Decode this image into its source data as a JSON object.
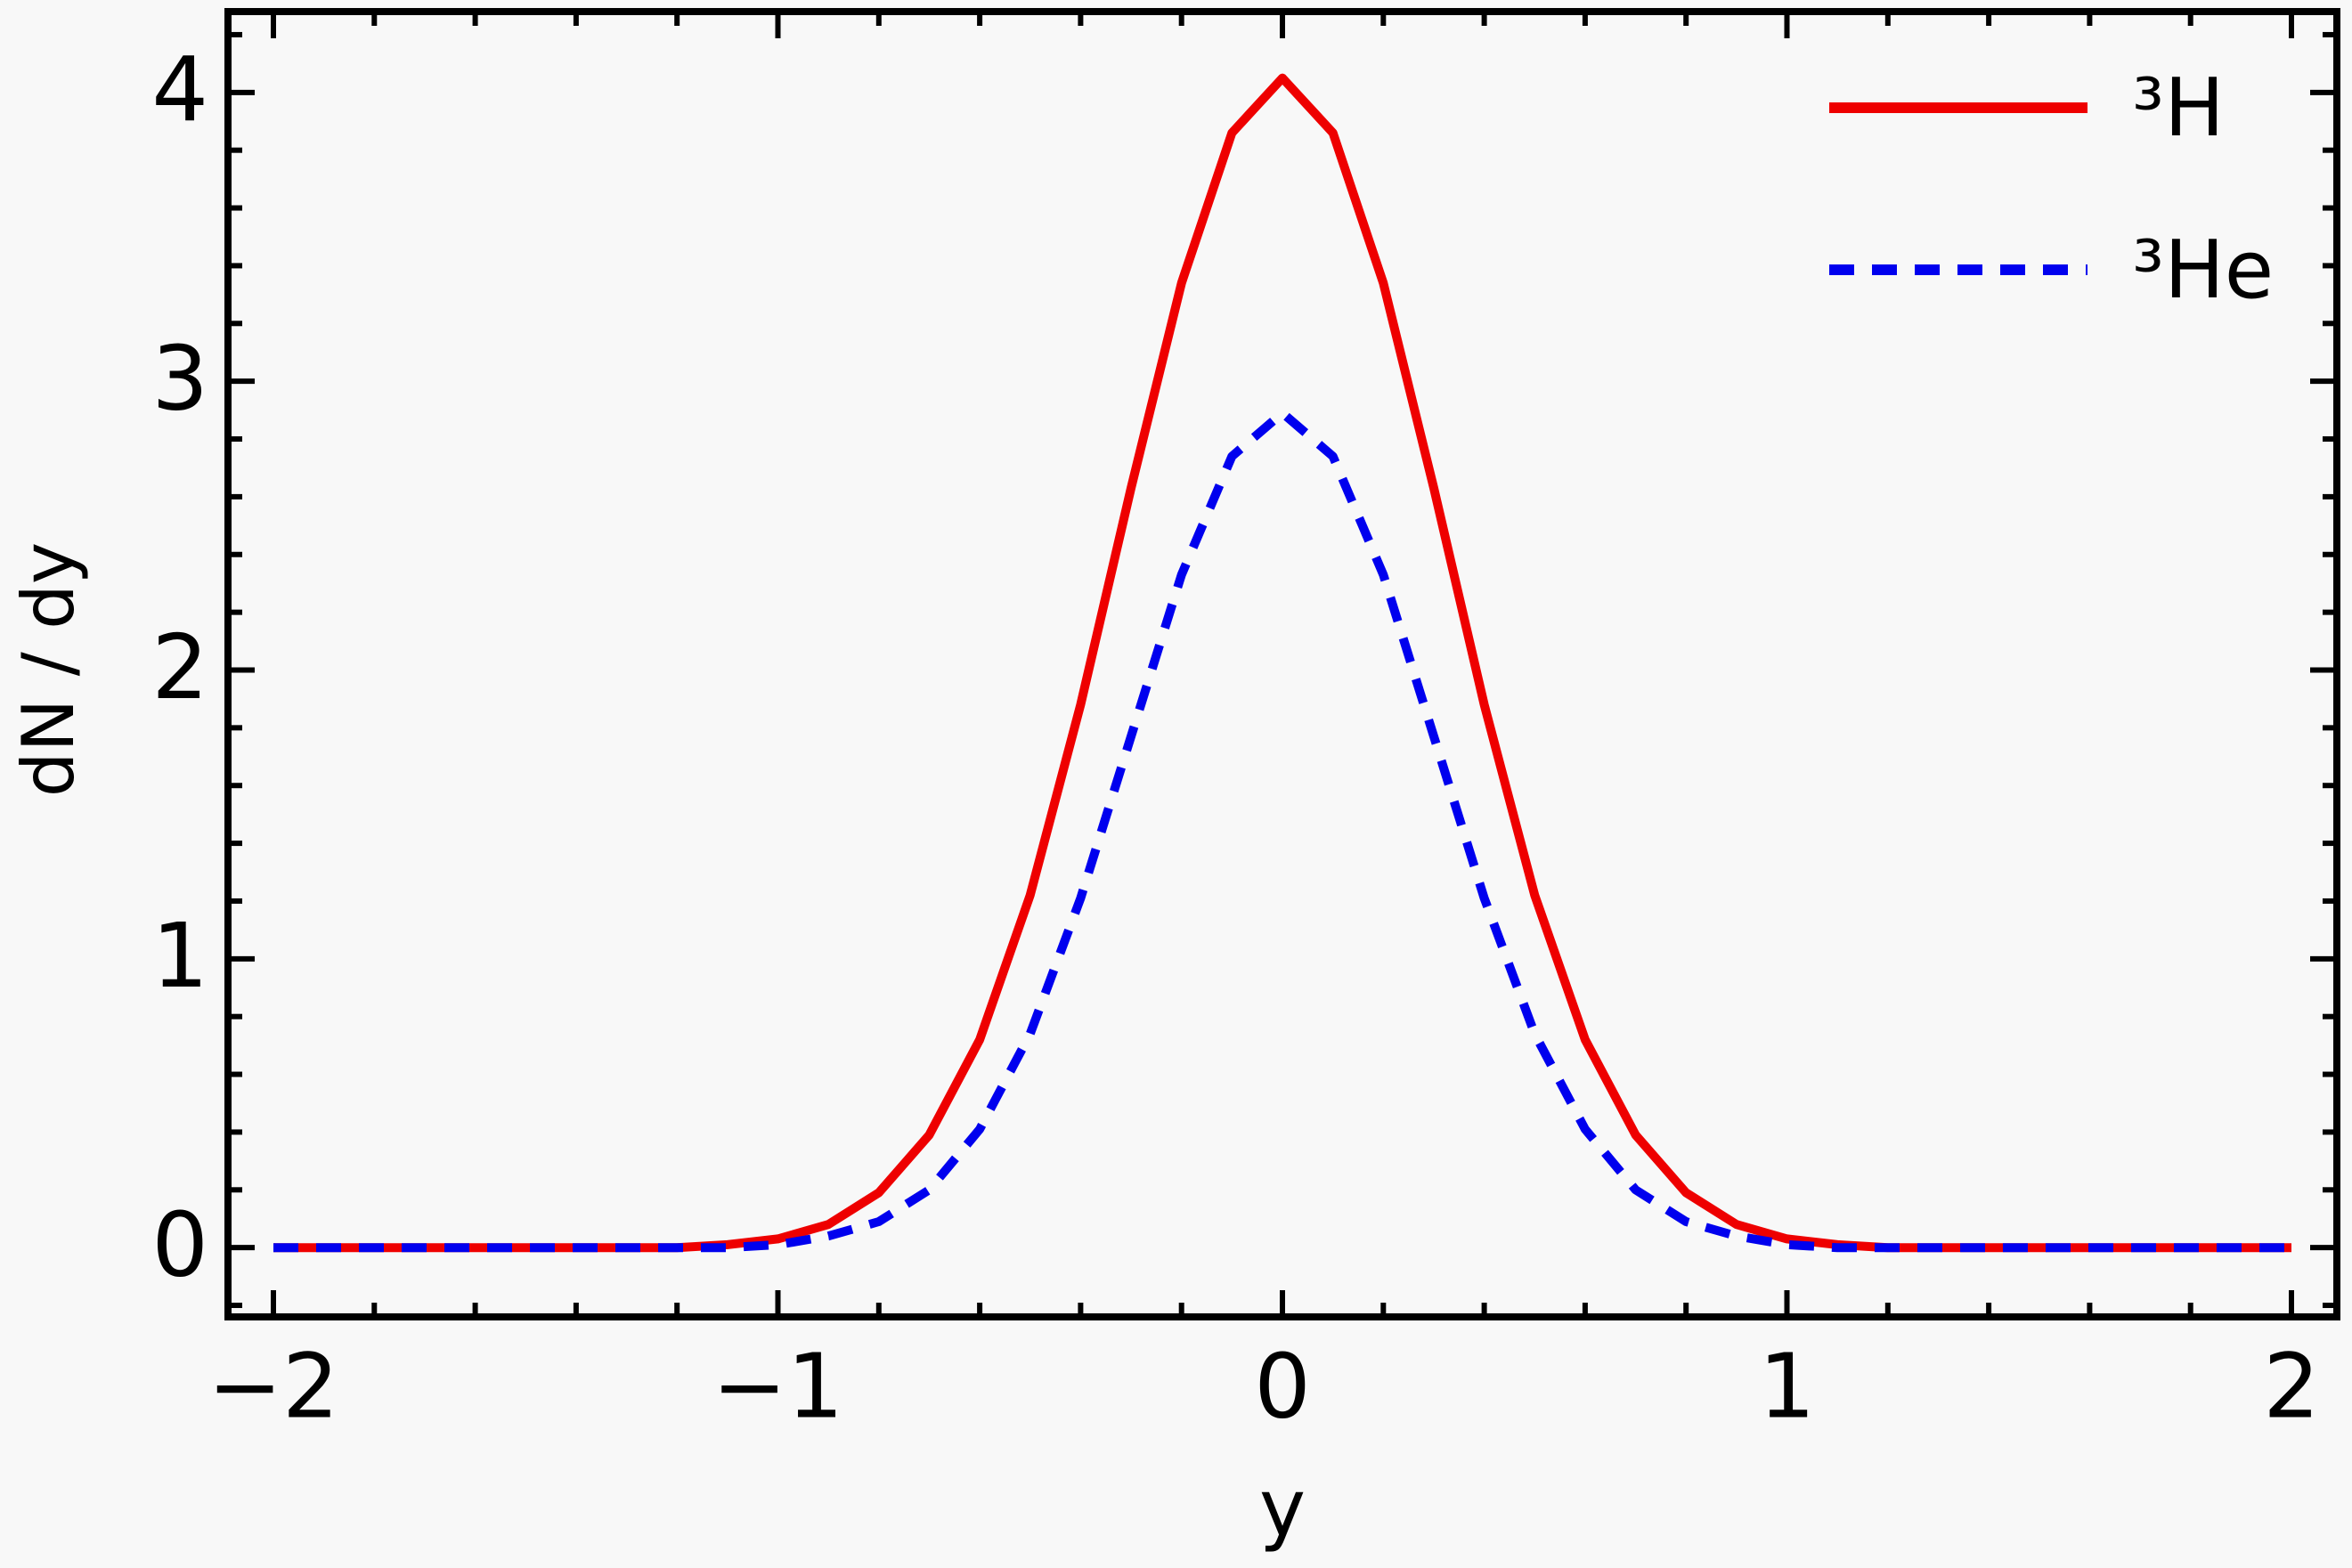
{
  "chart_data": {
    "type": "line",
    "x_label": "y",
    "y_label": "dN / dy",
    "x": [
      -2,
      -1.9,
      -1.8,
      -1.7,
      -1.6,
      -1.5,
      -1.4,
      -1.3,
      -1.2,
      -1.1,
      -1,
      -0.9,
      -0.8,
      -0.7,
      -0.6,
      -0.5,
      -0.4,
      -0.3,
      -0.2,
      -0.1,
      0,
      0.1,
      0.2,
      0.3,
      0.4,
      0.5,
      0.6,
      0.7,
      0.8,
      0.9,
      1,
      1.1,
      1.2,
      1.3,
      1.4,
      1.5,
      1.6,
      1.7,
      1.8,
      1.9,
      2
    ],
    "series": [
      {
        "name": "³H",
        "color": "#ee0000",
        "style": "solid",
        "values": [
          0,
          0,
          0,
          0,
          0,
          0,
          0,
          0,
          0,
          0.01,
          0.03,
          0.08,
          0.19,
          0.39,
          0.72,
          1.22,
          1.88,
          2.63,
          3.34,
          3.86,
          4.05,
          3.86,
          3.34,
          2.63,
          1.88,
          1.22,
          0.72,
          0.39,
          0.19,
          0.08,
          0.03,
          0.01,
          0,
          0,
          0,
          0,
          0,
          0,
          0,
          0,
          0
        ]
      },
      {
        "name": "³He",
        "color": "#0000ee",
        "style": "dashed",
        "values": [
          0,
          0,
          0,
          0,
          0,
          0,
          0,
          0,
          0,
          0,
          0.01,
          0.04,
          0.09,
          0.2,
          0.41,
          0.74,
          1.21,
          1.77,
          2.33,
          2.74,
          2.89,
          2.74,
          2.33,
          1.77,
          1.21,
          0.74,
          0.41,
          0.2,
          0.09,
          0.04,
          0.01,
          0,
          0,
          0,
          0,
          0,
          0,
          0,
          0,
          0,
          0
        ]
      }
    ],
    "xlim": [
      -2.09,
      2.09
    ],
    "ylim": [
      -0.24,
      4.28
    ],
    "xticks": [
      {
        "value": -2,
        "label": "−2"
      },
      {
        "value": -1,
        "label": "−1"
      },
      0,
      1,
      2
    ],
    "yticks": [
      0,
      1,
      2,
      3,
      4
    ],
    "xminorticks": [
      -1.8,
      -1.6,
      -1.4,
      -1.2,
      -0.8,
      -0.6,
      -0.4,
      -0.2,
      0.2,
      0.4,
      0.6,
      0.8,
      1.2,
      1.4,
      1.6,
      1.8
    ],
    "yminorticks": [
      -0.2,
      0.2,
      0.4,
      0.6,
      0.8,
      1.2,
      1.4,
      1.6,
      1.8,
      2.2,
      2.4,
      2.6,
      2.8,
      3.2,
      3.4,
      3.6,
      3.8,
      4.2
    ],
    "legend": "upper right",
    "grid": false
  }
}
